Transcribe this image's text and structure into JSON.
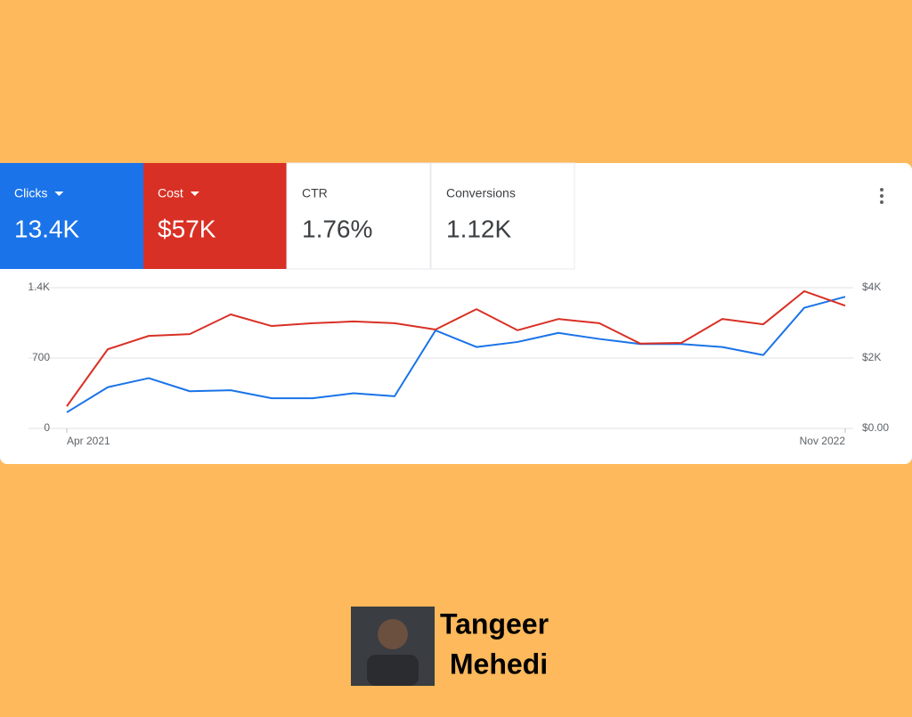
{
  "chart_data": {
    "type": "line",
    "categories": [
      "Apr 2021",
      null,
      null,
      null,
      null,
      null,
      null,
      null,
      null,
      null,
      null,
      null,
      null,
      null,
      null,
      null,
      null,
      null,
      null,
      "Nov 2022"
    ],
    "series": [
      {
        "name": "Clicks",
        "summary": "13.4K",
        "color": "#1a73e8",
        "values": [
          160,
          410,
          500,
          370,
          380,
          300,
          300,
          350,
          320,
          975,
          810,
          860,
          950,
          890,
          840,
          840,
          810,
          730,
          1200,
          1310
        ]
      },
      {
        "name": "Cost",
        "summary": "$57K",
        "color": "#d93025",
        "axis": "y2",
        "values": [
          630,
          2250,
          2630,
          2680,
          3240,
          2910,
          2990,
          3040,
          2990,
          2810,
          3390,
          2790,
          3110,
          2990,
          2410,
          2430,
          3110,
          2960,
          3900,
          3490
        ]
      }
    ],
    "ylim": [
      0,
      1400
    ],
    "yticks": [
      0,
      700,
      {
        "value": 1400,
        "label": "1.4K"
      }
    ],
    "y2lim": [
      0,
      4000
    ],
    "y2ticks": [
      {
        "value": 0,
        "label": "$0.00"
      },
      {
        "value": 2000,
        "label": "$2K"
      },
      {
        "value": 4000,
        "label": "$4K"
      }
    ],
    "grid": true
  },
  "metrics": [
    {
      "label": "CTR",
      "value": "1.76%"
    },
    {
      "label": "Conversions",
      "value": "1.12K"
    }
  ],
  "footer": {
    "name": [
      "Tangeer",
      "Mehedi"
    ]
  }
}
